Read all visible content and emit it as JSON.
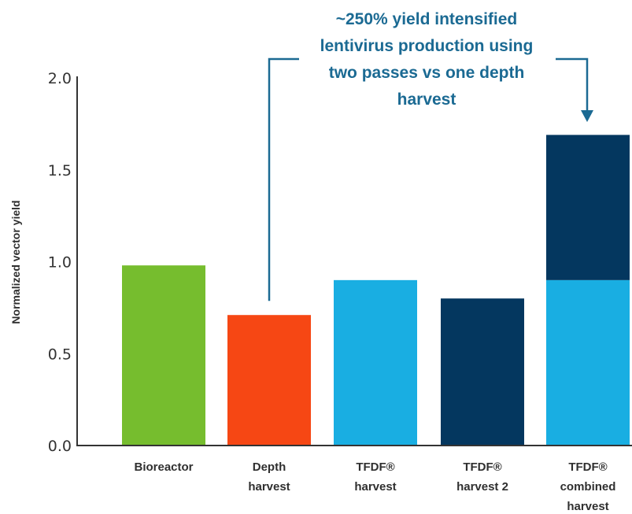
{
  "chart_data": {
    "type": "bar",
    "ylabel": "Normalized vector yield",
    "ylim": [
      0,
      2.0
    ],
    "yticks": [
      "0.0",
      "0.5",
      "1.0",
      "1.5",
      "2.0"
    ],
    "grid": false,
    "categories": [
      [
        "Bioreactor"
      ],
      [
        "Depth",
        "harvest"
      ],
      [
        "TFDF®",
        "harvest"
      ],
      [
        "TFDF®",
        "harvest 2"
      ],
      [
        "TFDF®",
        "combined",
        "harvest"
      ]
    ],
    "bars": [
      {
        "segments": [
          {
            "value": 0.98,
            "color": "#76bd2e"
          }
        ]
      },
      {
        "segments": [
          {
            "value": 0.71,
            "color": "#f64714"
          }
        ]
      },
      {
        "segments": [
          {
            "value": 0.9,
            "color": "#19aee2"
          }
        ]
      },
      {
        "segments": [
          {
            "value": 0.8,
            "color": "#04375f"
          }
        ]
      },
      {
        "segments": [
          {
            "value": 0.9,
            "color": "#19aee2"
          },
          {
            "value": 0.79,
            "color": "#04375f"
          }
        ]
      }
    ],
    "annotation": {
      "lines": [
        "~250% yield intensified",
        "lentivirus production using",
        "two passes vs one depth",
        "harvest"
      ],
      "color": "#1b6a93",
      "from_category": 1,
      "to_category": 4
    },
    "colors": {
      "axis": "#333333",
      "text": "#2f2f2f"
    }
  }
}
